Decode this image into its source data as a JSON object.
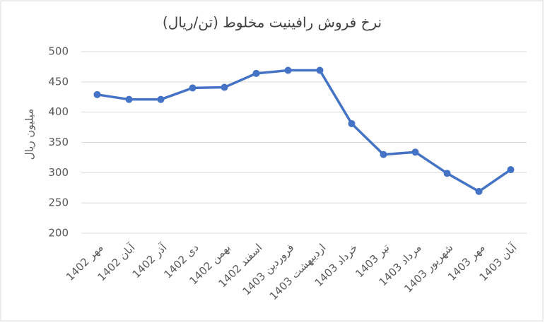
{
  "chart_data": {
    "type": "line",
    "title": "نرخ فروش رافینیت مخلوط (تن/ریال)",
    "y_label": "میلیون ریال",
    "categories": [
      "مهر 1402",
      "آبان 1402",
      "آذر 1402",
      "دی 1402",
      "بهمن 1402",
      "اسفند 1402",
      "فروردین 1403",
      "اردیبهشت 1403",
      "خرداد 1403",
      "تیر 1403",
      "مرداد 1403",
      "شهریور 1403",
      "مهر 1403",
      "آبان 1403"
    ],
    "values": [
      429,
      421,
      421,
      440,
      441,
      464,
      469,
      469,
      381,
      330,
      334,
      299,
      269,
      305
    ],
    "color": "#4472c4",
    "ylim": [
      200,
      500
    ],
    "yticks": [
      200,
      250,
      300,
      350,
      400,
      450,
      500
    ],
    "grid": true
  }
}
